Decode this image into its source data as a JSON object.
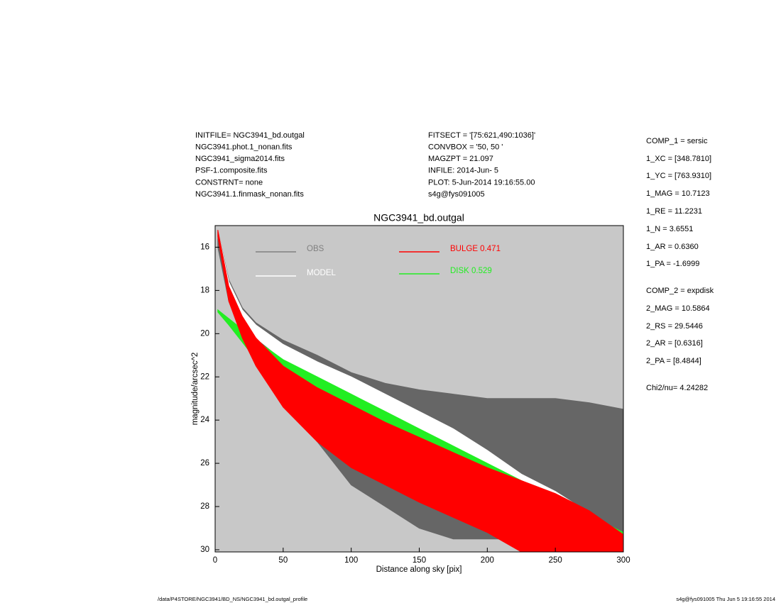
{
  "chart_data": {
    "type": "band",
    "title": "NGC3941_bd.outgal",
    "xlabel": "Distance along sky [pix]",
    "ylabel": "magnitude/arcsec^2",
    "header_left": [
      "INITFILE= NGC3941_bd.outgal",
      "NGC3941.phot.1_nonan.fits",
      "NGC3941_sigma2014.fits",
      "PSF-1.composite.fits",
      "CONSTRNT= none",
      "NGC3941.1.finmask_nonan.fits"
    ],
    "header_mid": [
      "FITSECT = '[75:621,490:1036]'",
      "CONVBOX = '50, 50  '",
      "MAGZPT =              21.097",
      "INFILE: 2014-Jun- 5",
      "PLOT:  5-Jun-2014 19:16:55.00",
      "s4g@fys091005"
    ],
    "params": [
      "COMP_1  = sersic",
      "1_XC     = [348.7810]",
      "1_YC     = [763.9310]",
      "1_MAG   = 10.7123",
      "1_RE     = 11.2231",
      "1_N      = 3.6551",
      "1_AR     = 0.6360",
      "1_PA     = -1.6999",
      "COMP_2  = expdisk",
      "2_MAG   = 10.5864",
      "2_RS     = 29.5446",
      "2_AR     = [0.6316]",
      "2_PA     = [8.4844]",
      "Chi2/nu=      4.24282"
    ],
    "footer_left": "/data/P4STORE/NGC3941/BD_NS/NGC3941_bd.outgal_profile",
    "footer_right": "s4g@fys091005  Thu Jun  5 19:16:55 2014",
    "x": [
      2,
      10,
      20,
      30,
      50,
      75,
      100,
      125,
      150,
      175,
      200,
      225,
      250,
      275,
      300
    ],
    "series": [
      {
        "name": "OBS",
        "color": "#666666",
        "legend_color": "#808080",
        "values": [
          15.2,
          17.5,
          18.8,
          19.5,
          20.3,
          21.0,
          21.8,
          22.3,
          22.6,
          22.8,
          23.0,
          23.0,
          23.0,
          23.2,
          23.5
        ],
        "faint": [
          16.0,
          18.5,
          20.0,
          21.0,
          22.5,
          25.0,
          27.0,
          28.0,
          29.0,
          29.5,
          29.5,
          29.5,
          29.0,
          28.5,
          29.5
        ]
      },
      {
        "name": "MODEL",
        "color": "#ffffff",
        "legend_color": "#ffffff",
        "values": [
          15.2,
          17.6,
          18.9,
          19.6,
          20.5,
          21.3,
          22.0,
          22.8,
          23.6,
          24.4,
          25.4,
          26.5,
          27.3,
          28.3,
          29.5
        ],
        "faint": [
          15.5,
          18.0,
          19.3,
          20.2,
          21.2,
          22.1,
          22.9,
          23.7,
          24.6,
          25.5,
          26.4,
          27.3,
          28.1,
          29.0,
          29.9
        ]
      },
      {
        "name": "DISK  0.529",
        "color": "#22ee22",
        "legend_color": "#22ee22",
        "values": [
          18.9,
          19.3,
          19.8,
          20.3,
          21.2,
          22.0,
          22.8,
          23.6,
          24.4,
          25.2,
          26.0,
          26.8,
          27.6,
          28.4,
          29.2
        ],
        "faint": [
          19.0,
          19.6,
          20.4,
          21.2,
          22.6,
          24.0,
          25.2,
          26.2,
          27.2,
          28.2,
          29.1,
          29.8,
          30.1,
          30.1,
          30.1
        ]
      },
      {
        "name": "BULGE  0.471",
        "color": "#ff0000",
        "legend_color": "#ff0000",
        "values": [
          15.2,
          17.8,
          19.2,
          20.2,
          21.5,
          22.5,
          23.3,
          24.1,
          24.8,
          25.5,
          26.2,
          26.8,
          27.4,
          28.2,
          29.3
        ],
        "faint": [
          15.5,
          18.5,
          20.2,
          21.5,
          23.4,
          25.0,
          26.2,
          27.0,
          27.8,
          28.5,
          29.2,
          30.1,
          30.1,
          30.1,
          30.1
        ]
      }
    ],
    "xlim": [
      0,
      300
    ],
    "xticks": [
      0,
      50,
      100,
      150,
      200,
      250,
      300
    ],
    "ylim": [
      30.1,
      15.0
    ],
    "yticks": [
      16,
      18,
      20,
      22,
      24,
      26,
      28,
      30
    ],
    "background": "#c8c8c8"
  }
}
